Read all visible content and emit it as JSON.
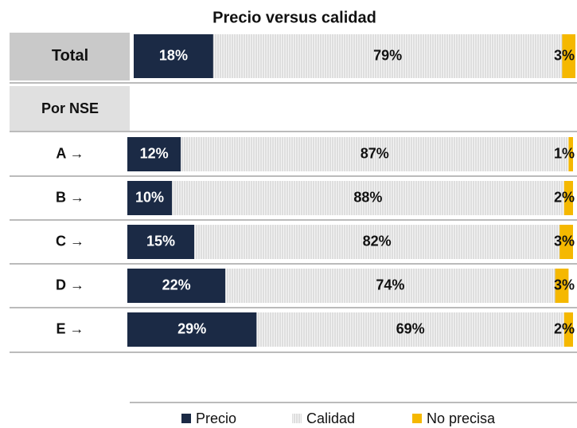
{
  "chart_data": {
    "type": "stacked-bar-horizontal",
    "title": "Precio versus calidad",
    "group_label": "Por NSE",
    "categories": [
      "Total",
      "A →",
      "B →",
      "C →",
      "D →",
      "E →"
    ],
    "xlim": [
      0,
      100
    ],
    "series": [
      {
        "name": "Precio",
        "color": "#1b2a45",
        "values": [
          18,
          12,
          10,
          15,
          22,
          29
        ],
        "value_labels": [
          "18%",
          "12%",
          "10%",
          "15%",
          "22%",
          "29%"
        ]
      },
      {
        "name": "Calidad",
        "color": "#c8c8c8",
        "values": [
          79,
          87,
          88,
          82,
          74,
          69
        ],
        "value_labels": [
          "79%",
          "87%",
          "88%",
          "82%",
          "74%",
          "69%"
        ]
      },
      {
        "name": "No precisa",
        "color": "#f5b800",
        "values": [
          3,
          1,
          2,
          3,
          3,
          2
        ],
        "value_labels": [
          "3%",
          "1%",
          "2%",
          "3%",
          "3%",
          "2%"
        ]
      }
    ]
  }
}
